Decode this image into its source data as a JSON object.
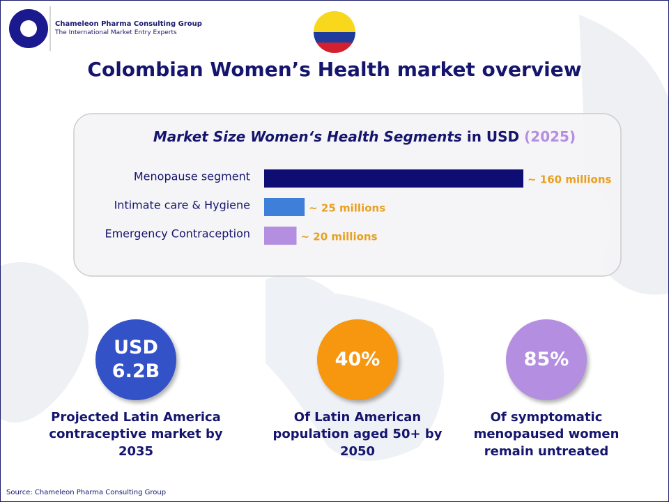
{
  "header": {
    "company": "Chameleon Pharma Consulting Group",
    "tagline": "The International Market Entry Experts"
  },
  "title": "Colombian Women’s Health market overview",
  "chart_data": {
    "type": "bar",
    "orientation": "horizontal",
    "title": [
      "Market Size Women‘s Health Segments",
      "in USD",
      "(2025)"
    ],
    "categories": [
      "Menopause segment",
      "Intimate care & Hygiene",
      "Emergency Contraception"
    ],
    "values": [
      160,
      25,
      20
    ],
    "value_labels": [
      "~ 160 millions",
      "~ 25 millions",
      "~ 20 millions"
    ],
    "colors": [
      "#0d0d73",
      "#3d7fd9",
      "#b48ee0"
    ]
  },
  "stats": [
    {
      "value": [
        "USD",
        "6.2B"
      ],
      "text": "Projected Latin America contraceptive market by 2035",
      "color": "#3452c8"
    },
    {
      "value": [
        "40%"
      ],
      "text": "Of Latin American population aged 50+ by 2050",
      "color": "#f7960f"
    },
    {
      "value": [
        "85%"
      ],
      "text": "Of symptomatic menopaused women remain untreated",
      "color": "#b48ee0"
    }
  ],
  "source": "Source: Chameleon Pharma Consulting Group"
}
